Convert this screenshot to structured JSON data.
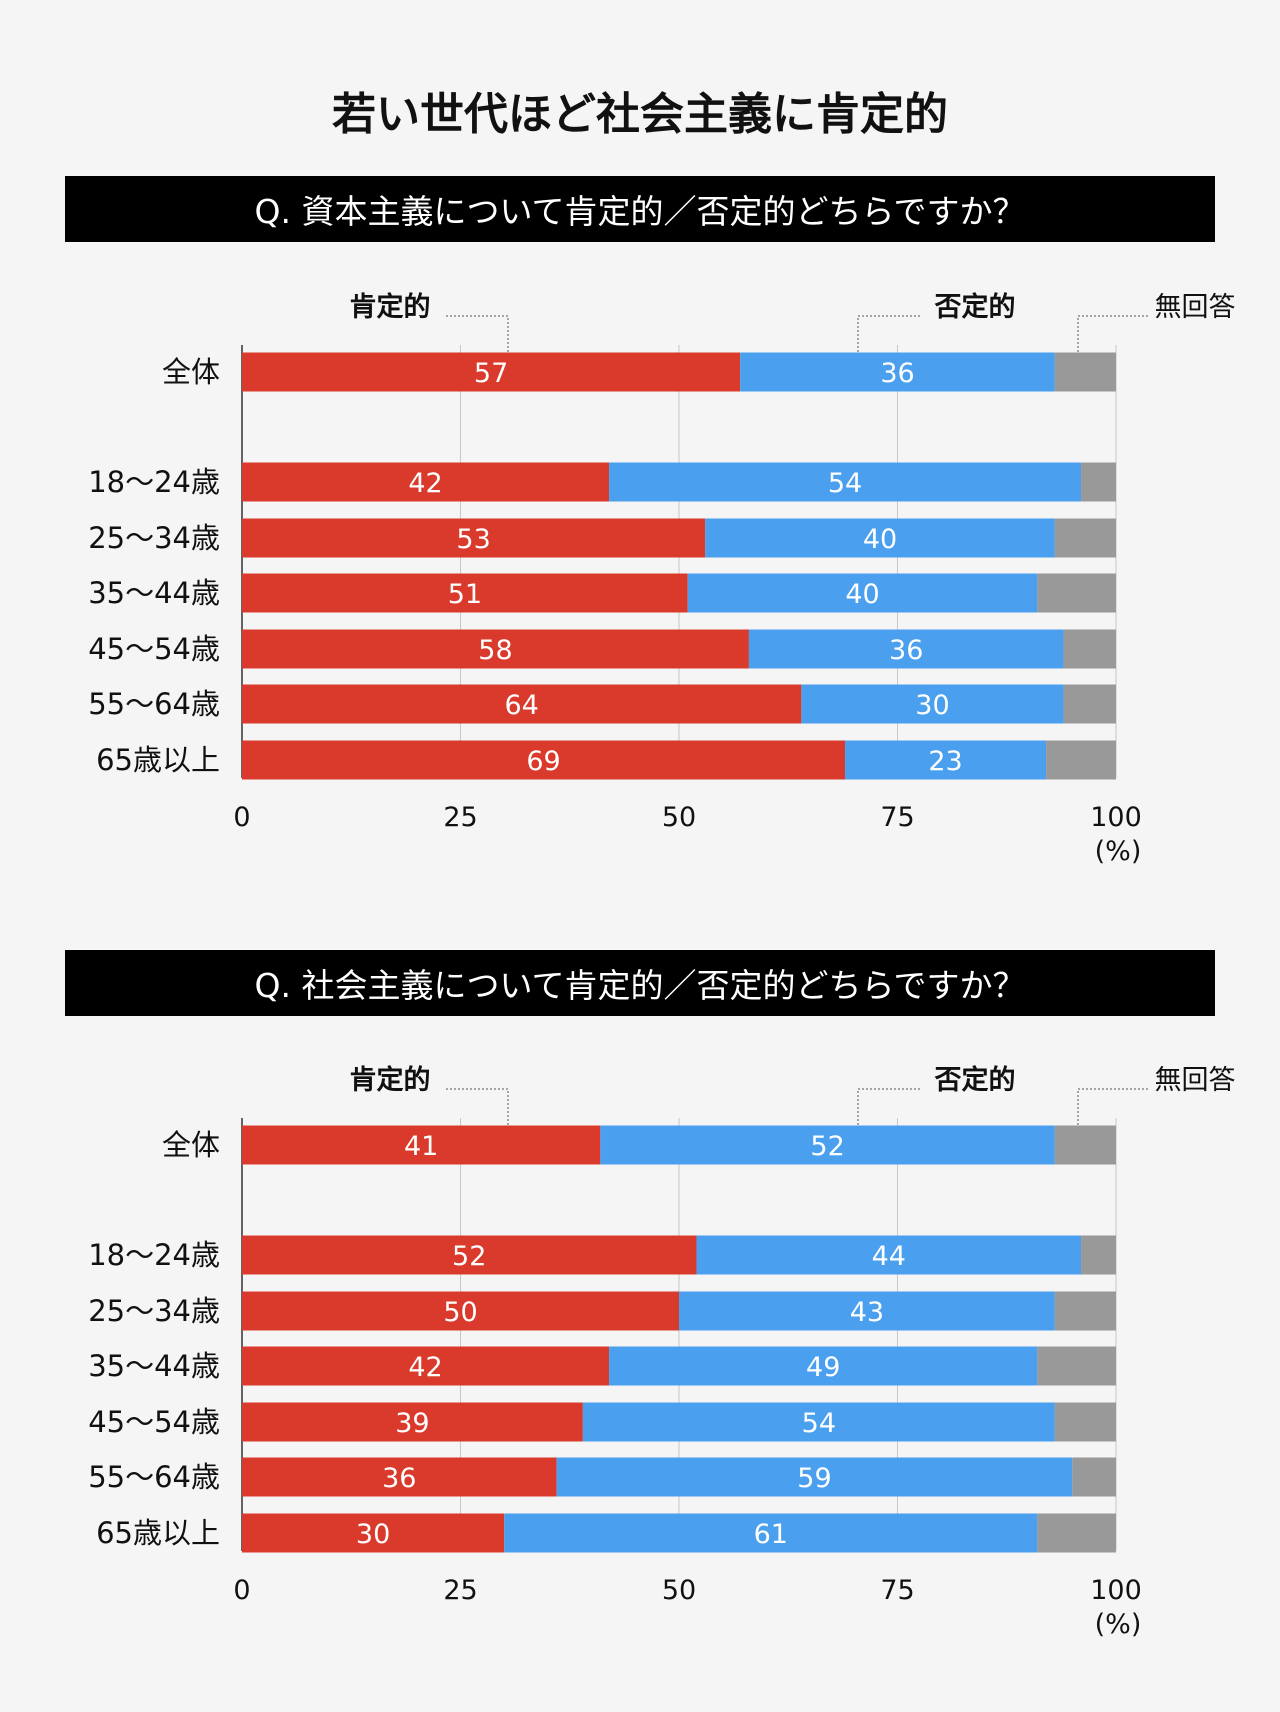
{
  "title": "若い世代ほど社会主義に肯定的",
  "colors": {
    "positive": "#d93a2b",
    "negative": "#4aa0ee",
    "no_answer": "#999999"
  },
  "chart_data": [
    {
      "type": "bar",
      "orientation": "horizontal",
      "stacked": true,
      "title": "Q. 資本主義について肯定的／否定的どちらですか？",
      "categories": [
        "全体",
        "18〜24歳",
        "25〜34歳",
        "35〜44歳",
        "45〜54歳",
        "55〜64歳",
        "65歳以上"
      ],
      "series": [
        {
          "name": "肯定的",
          "values": [
            57,
            42,
            53,
            51,
            58,
            64,
            69
          ]
        },
        {
          "name": "否定的",
          "values": [
            36,
            54,
            40,
            40,
            36,
            30,
            23
          ]
        },
        {
          "name": "無回答",
          "values": [
            7,
            4,
            7,
            9,
            6,
            6,
            8
          ]
        }
      ],
      "xlim": [
        0,
        100
      ],
      "xticks": [
        "0",
        "25",
        "50",
        "75",
        "100"
      ],
      "xunit": "(%)",
      "grid": true
    },
    {
      "type": "bar",
      "orientation": "horizontal",
      "stacked": true,
      "title": "Q. 社会主義について肯定的／否定的どちらですか？",
      "categories": [
        "全体",
        "18〜24歳",
        "25〜34歳",
        "35〜44歳",
        "45〜54歳",
        "55〜64歳",
        "65歳以上"
      ],
      "series": [
        {
          "name": "肯定的",
          "values": [
            41,
            52,
            50,
            42,
            39,
            36,
            30
          ]
        },
        {
          "name": "否定的",
          "values": [
            52,
            44,
            43,
            49,
            54,
            59,
            61
          ]
        },
        {
          "name": "無回答",
          "values": [
            7,
            4,
            7,
            9,
            7,
            5,
            9
          ]
        }
      ],
      "xlim": [
        0,
        100
      ],
      "xticks": [
        "0",
        "25",
        "50",
        "75",
        "100"
      ],
      "xunit": "(%)",
      "grid": true
    }
  ]
}
